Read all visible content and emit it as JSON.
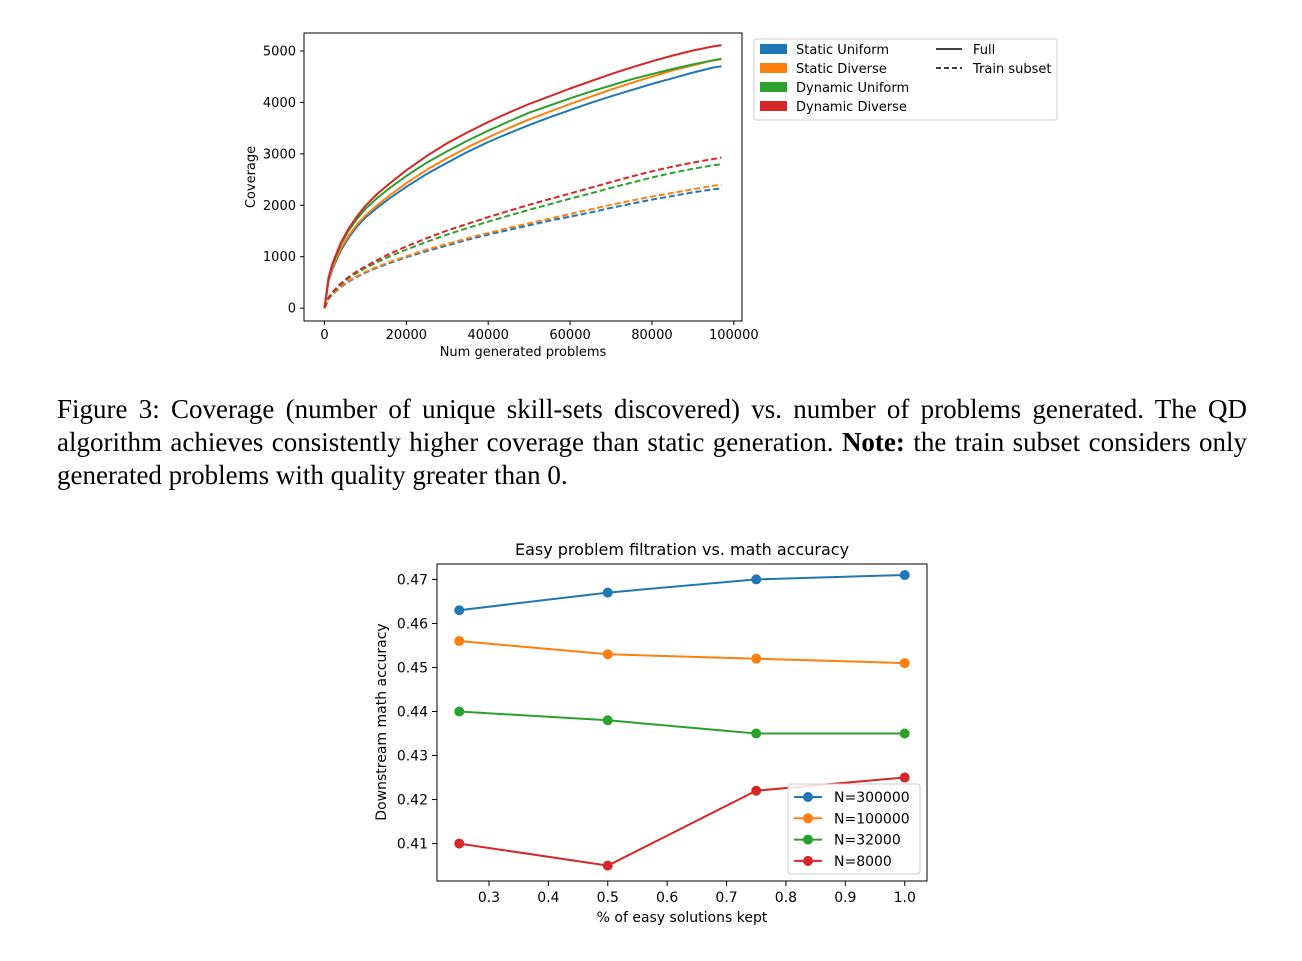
{
  "caption": {
    "label": "Figure 3:",
    "text_before_note": "Coverage (number of unique skill-sets discovered) vs. number of problems generated. The QD algorithm achieves consistently higher coverage than static generation.",
    "note_label": "Note:",
    "text_after_note": "the train subset considers only generated problems with quality greater than 0."
  },
  "chart_data": [
    {
      "type": "line",
      "title": "",
      "xlabel": "Num generated problems",
      "ylabel": "Coverage",
      "xlim": [
        -5000,
        102000
      ],
      "ylim": [
        -250,
        5350
      ],
      "xticks": [
        0,
        20000,
        40000,
        60000,
        80000,
        100000
      ],
      "yticks": [
        0,
        1000,
        2000,
        3000,
        4000,
        5000
      ],
      "grid": false,
      "legend_position": "outside-right",
      "legend_colors": [
        {
          "name": "Static Uniform",
          "color": "#1f77b4"
        },
        {
          "name": "Static Diverse",
          "color": "#ff7f0e"
        },
        {
          "name": "Dynamic Uniform",
          "color": "#2ca02c"
        },
        {
          "name": "Dynamic Diverse",
          "color": "#d62728"
        }
      ],
      "legend_styles": [
        {
          "name": "Full",
          "dash": "solid"
        },
        {
          "name": "Train subset",
          "dash": "dashed"
        }
      ],
      "x": [
        0,
        1000,
        2000,
        4000,
        6000,
        8000,
        10000,
        13000,
        16000,
        20000,
        25000,
        30000,
        35000,
        40000,
        45000,
        50000,
        55000,
        60000,
        65000,
        70000,
        75000,
        80000,
        85000,
        90000,
        95000,
        97000
      ],
      "series": [
        {
          "group": "Static Uniform",
          "style": "Full",
          "color": "#1f77b4",
          "values": [
            0,
            530,
            770,
            1120,
            1380,
            1590,
            1760,
            1960,
            2140,
            2360,
            2610,
            2830,
            3040,
            3230,
            3400,
            3560,
            3710,
            3850,
            3990,
            4120,
            4240,
            4360,
            4470,
            4580,
            4680,
            4700
          ]
        },
        {
          "group": "Static Diverse",
          "style": "Full",
          "color": "#ff7f0e",
          "values": [
            0,
            550,
            800,
            1160,
            1420,
            1630,
            1800,
            2010,
            2200,
            2430,
            2690,
            2920,
            3130,
            3320,
            3500,
            3670,
            3820,
            3970,
            4110,
            4250,
            4380,
            4500,
            4620,
            4720,
            4820,
            4840
          ]
        },
        {
          "group": "Dynamic Uniform",
          "style": "Full",
          "color": "#2ca02c",
          "values": [
            0,
            580,
            850,
            1240,
            1520,
            1740,
            1930,
            2150,
            2340,
            2570,
            2830,
            3050,
            3260,
            3450,
            3630,
            3800,
            3940,
            4080,
            4210,
            4330,
            4450,
            4550,
            4650,
            4740,
            4820,
            4850
          ]
        },
        {
          "group": "Dynamic Diverse",
          "style": "Full",
          "color": "#d62728",
          "values": [
            0,
            600,
            880,
            1270,
            1560,
            1790,
            1990,
            2230,
            2430,
            2680,
            2960,
            3210,
            3420,
            3620,
            3800,
            3970,
            4120,
            4270,
            4410,
            4550,
            4680,
            4800,
            4910,
            5010,
            5090,
            5110
          ]
        },
        {
          "group": "Static Uniform",
          "style": "Train subset",
          "color": "#1f77b4",
          "values": [
            0,
            180,
            270,
            410,
            520,
            610,
            690,
            790,
            880,
            990,
            1110,
            1220,
            1330,
            1430,
            1520,
            1610,
            1700,
            1780,
            1860,
            1950,
            2030,
            2110,
            2180,
            2250,
            2310,
            2330
          ]
        },
        {
          "group": "Static Diverse",
          "style": "Train subset",
          "color": "#ff7f0e",
          "values": [
            0,
            185,
            280,
            420,
            535,
            625,
            705,
            810,
            900,
            1010,
            1140,
            1250,
            1360,
            1460,
            1560,
            1650,
            1740,
            1830,
            1920,
            2010,
            2090,
            2170,
            2240,
            2310,
            2380,
            2400
          ]
        },
        {
          "group": "Dynamic Uniform",
          "style": "Train subset",
          "color": "#2ca02c",
          "values": [
            0,
            200,
            300,
            460,
            590,
            690,
            780,
            900,
            1010,
            1140,
            1290,
            1430,
            1560,
            1680,
            1800,
            1910,
            2020,
            2130,
            2230,
            2340,
            2440,
            2540,
            2630,
            2710,
            2780,
            2800
          ]
        },
        {
          "group": "Dynamic Diverse",
          "style": "Train subset",
          "color": "#d62728",
          "values": [
            0,
            210,
            315,
            480,
            610,
            720,
            810,
            940,
            1060,
            1200,
            1360,
            1510,
            1640,
            1770,
            1890,
            2010,
            2120,
            2230,
            2340,
            2450,
            2560,
            2660,
            2750,
            2830,
            2900,
            2930
          ]
        }
      ]
    },
    {
      "type": "line",
      "title": "Easy problem filtration vs. math accuracy",
      "xlabel": "% of easy solutions kept",
      "ylabel": "Downstream math accuracy",
      "xlim": [
        0.2125,
        1.0375
      ],
      "ylim": [
        0.4015,
        0.4735
      ],
      "xticks": [
        0.3,
        0.4,
        0.5,
        0.6,
        0.7,
        0.8,
        0.9,
        1.0
      ],
      "xtick_labels": [
        "0.3",
        "0.4",
        "0.5",
        "0.6",
        "0.7",
        "0.8",
        "0.9",
        "1.0"
      ],
      "yticks": [
        0.41,
        0.42,
        0.43,
        0.44,
        0.45,
        0.46,
        0.47
      ],
      "ytick_labels": [
        "0.41",
        "0.42",
        "0.43",
        "0.44",
        "0.45",
        "0.46",
        "0.47"
      ],
      "grid": false,
      "legend_position": "lower-right",
      "x": [
        0.25,
        0.5,
        0.75,
        1.0
      ],
      "series": [
        {
          "name": "N=300000",
          "color": "#1f77b4",
          "values": [
            0.463,
            0.467,
            0.47,
            0.471
          ]
        },
        {
          "name": "N=100000",
          "color": "#ff7f0e",
          "values": [
            0.456,
            0.453,
            0.452,
            0.451
          ]
        },
        {
          "name": "N=32000",
          "color": "#2ca02c",
          "values": [
            0.44,
            0.438,
            0.435,
            0.435
          ]
        },
        {
          "name": "N=8000",
          "color": "#d62728",
          "values": [
            0.41,
            0.405,
            0.422,
            0.425
          ]
        }
      ]
    }
  ]
}
